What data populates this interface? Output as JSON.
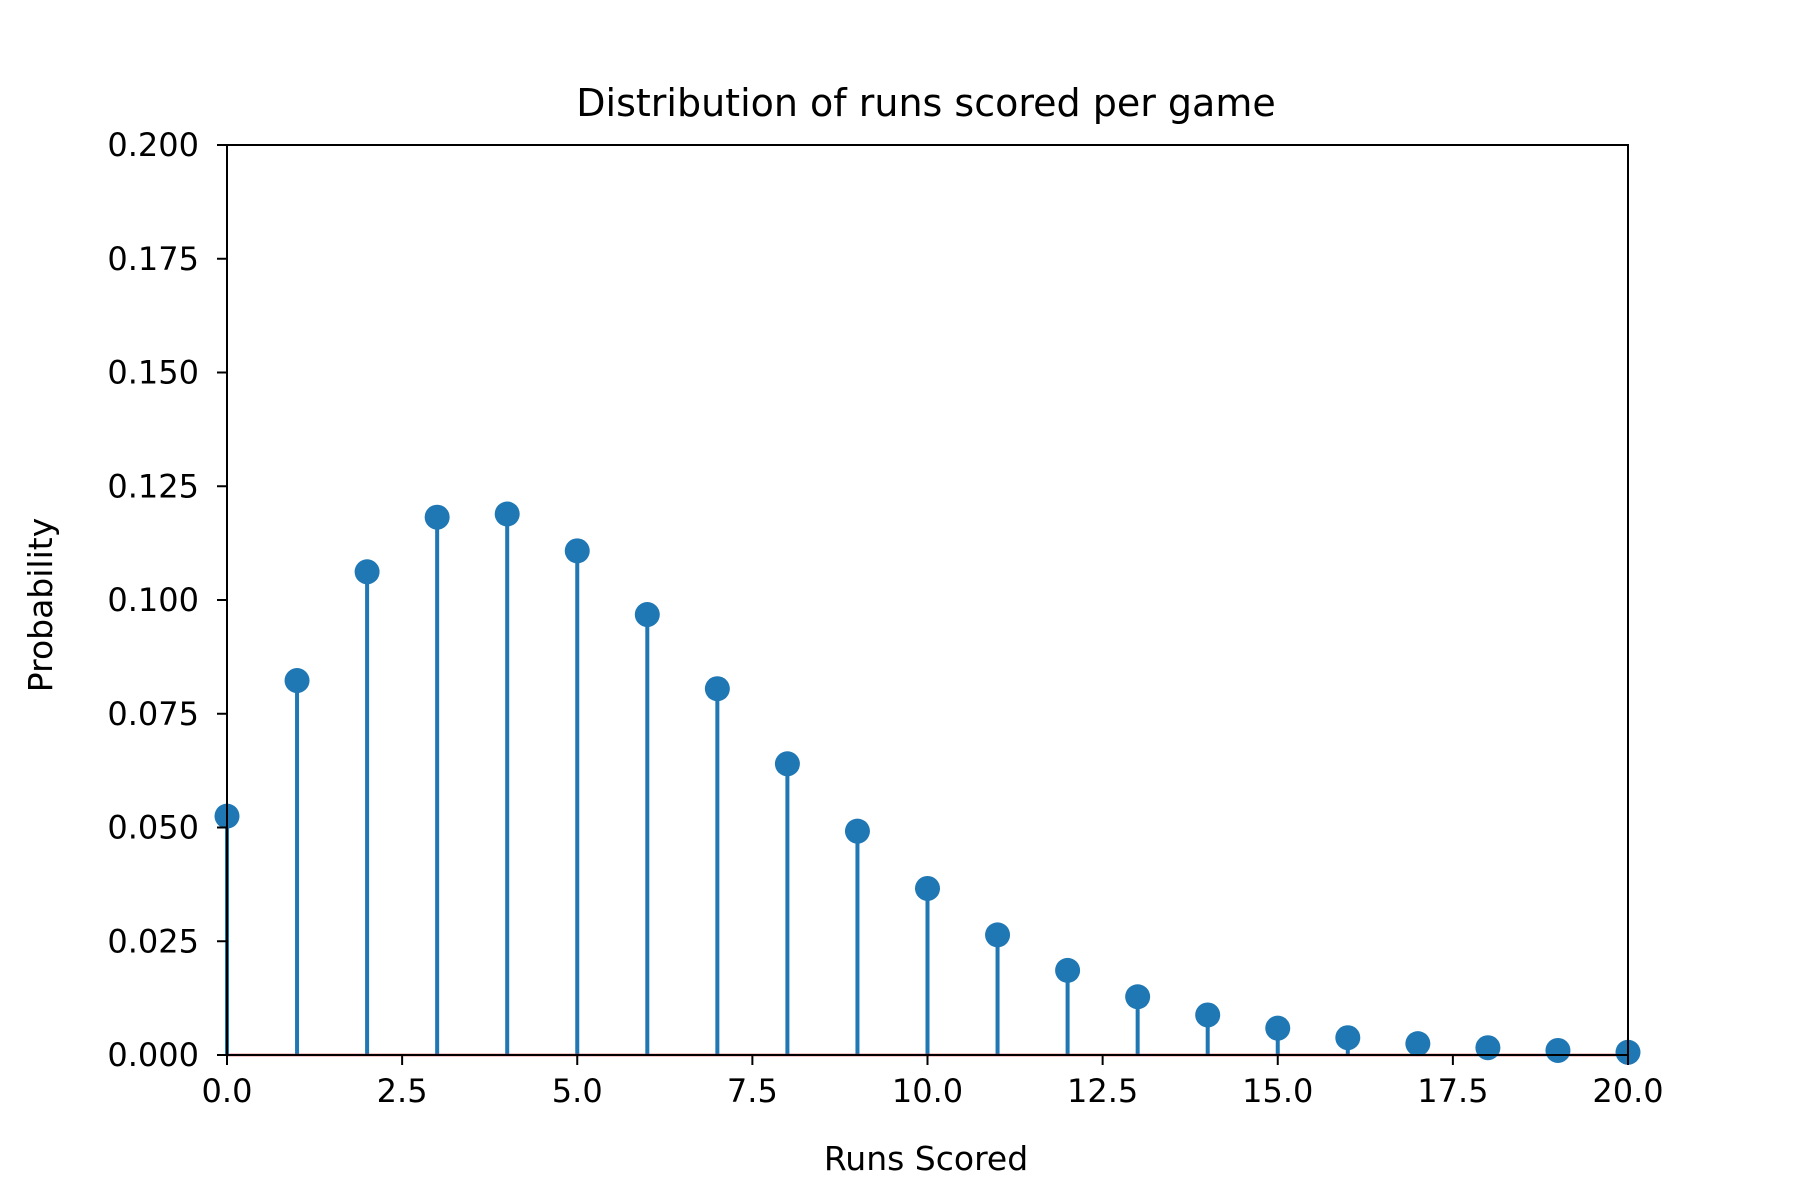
{
  "chart_data": {
    "type": "stem",
    "title": "Distribution of runs scored per game",
    "xlabel": "Runs Scored",
    "ylabel": "Probability",
    "xlim": [
      0,
      20
    ],
    "ylim": [
      0,
      0.2
    ],
    "xticks": [
      "0.0",
      "2.5",
      "5.0",
      "7.5",
      "10.0",
      "12.5",
      "15.0",
      "17.5",
      "20.0"
    ],
    "xtick_values": [
      0,
      2.5,
      5,
      7.5,
      10,
      12.5,
      15,
      17.5,
      20
    ],
    "yticks": [
      "0.000",
      "0.025",
      "0.050",
      "0.075",
      "0.100",
      "0.125",
      "0.150",
      "0.175",
      "0.200"
    ],
    "ytick_values": [
      0,
      0.025,
      0.05,
      0.075,
      0.1,
      0.125,
      0.15,
      0.175,
      0.2
    ],
    "grid": false,
    "x": [
      0,
      1,
      2,
      3,
      4,
      5,
      6,
      7,
      8,
      9,
      10,
      11,
      12,
      13,
      14,
      15,
      16,
      17,
      18,
      19,
      20
    ],
    "values": [
      0.0525,
      0.0823,
      0.1062,
      0.1182,
      0.1189,
      0.1108,
      0.0968,
      0.0805,
      0.064,
      0.0492,
      0.0366,
      0.0264,
      0.0186,
      0.0128,
      0.0088,
      0.0059,
      0.0038,
      0.0025,
      0.0016,
      0.001,
      0.0006
    ],
    "colors": {
      "marker": "#1f77b4",
      "baseline": "#d62728"
    }
  }
}
